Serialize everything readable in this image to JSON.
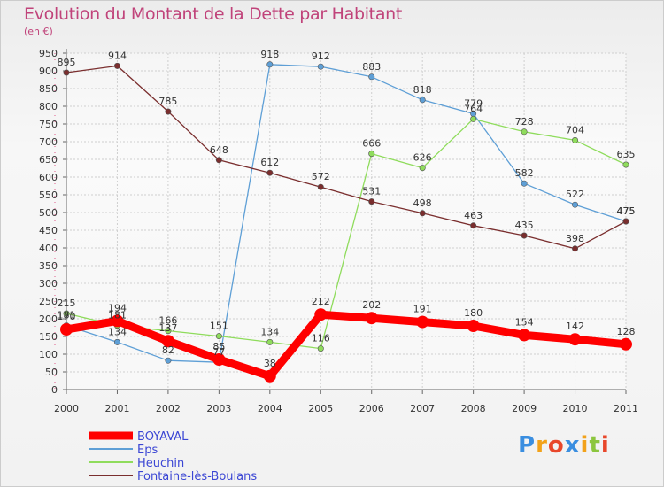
{
  "chart_data": {
    "type": "line",
    "title": "Evolution du Montant de la Dette par Habitant",
    "subtitle": "(en €)",
    "x": [
      "2000",
      "2001",
      "2002",
      "2003",
      "2004",
      "2005",
      "2006",
      "2007",
      "2008",
      "2009",
      "2010",
      "2011"
    ],
    "ylim": [
      0,
      950
    ],
    "yticks": [
      0,
      50,
      100,
      150,
      200,
      250,
      300,
      350,
      400,
      450,
      500,
      550,
      600,
      650,
      700,
      750,
      800,
      850,
      900,
      950
    ],
    "grid": true,
    "legend_position": "bottom-left",
    "series": [
      {
        "name": "BOYAVAL",
        "color": "#ff0000",
        "values": [
          170,
          194,
          137,
          85,
          38,
          212,
          202,
          191,
          180,
          154,
          142,
          128
        ]
      },
      {
        "name": "Eps",
        "color": "#5e9fd6",
        "values": [
          181,
          134,
          82,
          77,
          918,
          912,
          883,
          818,
          779,
          582,
          522,
          475
        ]
      },
      {
        "name": "Heuchin",
        "color": "#8fdc5c",
        "values": [
          215,
          181,
          166,
          151,
          134,
          116,
          666,
          626,
          764,
          728,
          704,
          635
        ]
      },
      {
        "name": "Fontaine-lès-Boulans",
        "color": "#7a2e2e",
        "values": [
          895,
          914,
          785,
          648,
          612,
          572,
          531,
          498,
          463,
          435,
          398,
          475
        ]
      }
    ]
  },
  "logo": {
    "letters": [
      "P",
      "r",
      "o",
      "x",
      "i",
      "t",
      "i"
    ],
    "colors": [
      "#3a8ee0",
      "#f2a21a",
      "#e8472b",
      "#3a8ee0",
      "#f2a21a",
      "#8cc63e",
      "#e8472b"
    ]
  }
}
